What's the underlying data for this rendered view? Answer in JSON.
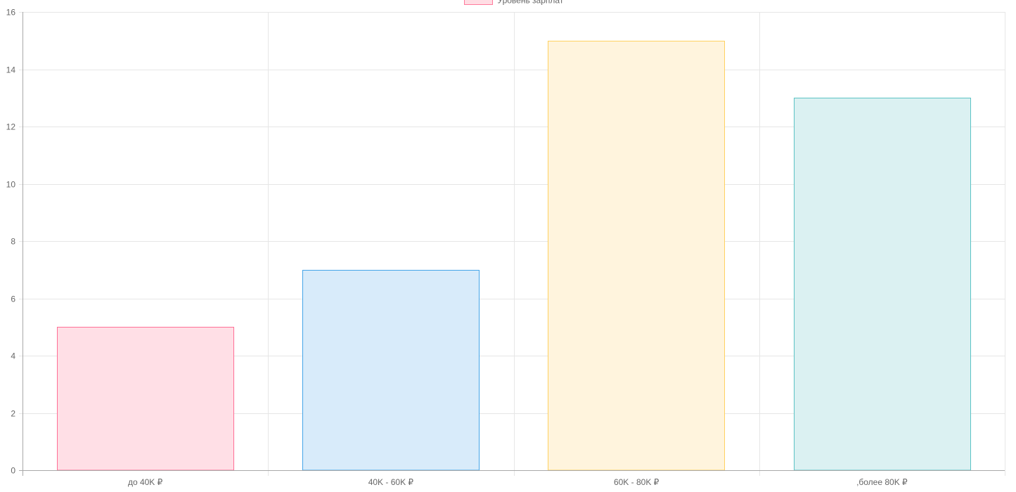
{
  "chart_data": {
    "type": "bar",
    "legend": {
      "position": "top",
      "entries": [
        {
          "label": "Уровень зарплат",
          "fill": "#ffdde4",
          "stroke": "#ff7a9c"
        }
      ]
    },
    "categories": [
      "до 40K ₽",
      "40K - 60K ₽",
      "60K - 80K ₽",
      ",более 80K ₽"
    ],
    "series": [
      {
        "name": "Уровень зарплат",
        "values": [
          5,
          7,
          15,
          13
        ],
        "fills": [
          "#ffdfe6",
          "#d8ebfa",
          "#fff4dd",
          "#dbf1f2"
        ],
        "strokes": [
          "#ff6f96",
          "#43a4e8",
          "#ffd160",
          "#5cc3c5"
        ]
      }
    ],
    "ylim": [
      0,
      16
    ],
    "yticks": [
      0,
      2,
      4,
      6,
      8,
      10,
      12,
      14,
      16
    ],
    "grid": true,
    "title": "",
    "xlabel": "",
    "ylabel": ""
  }
}
